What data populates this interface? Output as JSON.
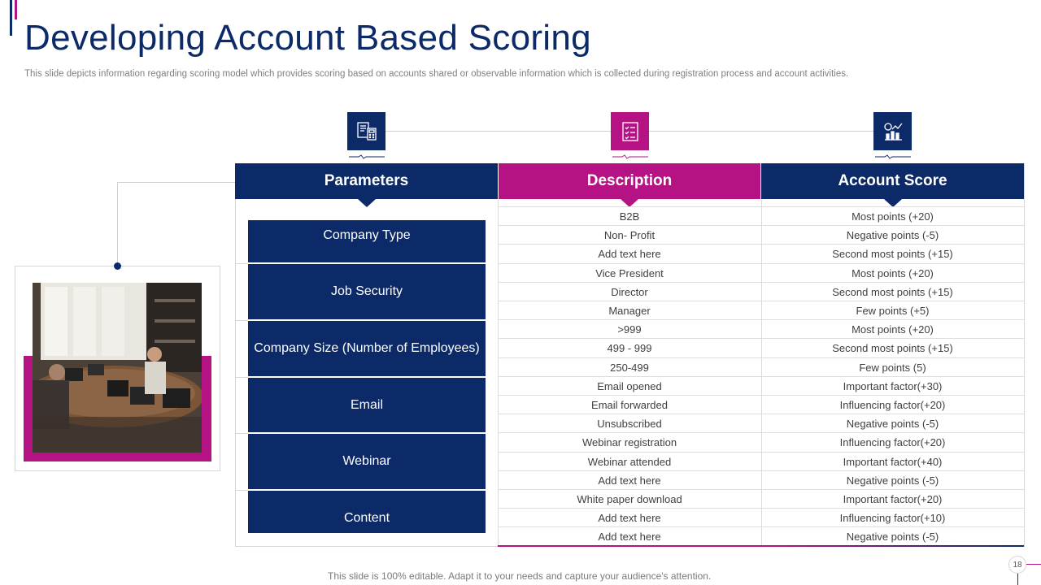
{
  "title": "Developing Account Based Scoring",
  "subtitle": "This slide depicts information regarding scoring model which provides scoring based on accounts shared or observable information which is collected during registration process and account activities.",
  "colors": {
    "navy": "#0c2a68",
    "magenta": "#b51283"
  },
  "icons": [
    "calculator-document-icon",
    "checklist-icon",
    "analytics-icon"
  ],
  "headers": {
    "parameters": "Parameters",
    "description": "Description",
    "account_score": "Account Score"
  },
  "parameters": [
    "Company Type",
    "Job Security",
    "Company Size (Number of Employees)",
    "Email",
    "Webinar",
    "Content"
  ],
  "rows": [
    {
      "description": "B2B",
      "score": "Most points (+20)"
    },
    {
      "description": "Non- Profit",
      "score": "Negative  points (-5)"
    },
    {
      "description": "Add text here",
      "score": "Second most points (+15)"
    },
    {
      "description": "Vice President",
      "score": "Most points (+20)"
    },
    {
      "description": "Director",
      "score": "Second most points (+15)"
    },
    {
      "description": "Manager",
      "score": "Few points (+5)"
    },
    {
      "description": ">999",
      "score": "Most points (+20)"
    },
    {
      "description": "499 - 999",
      "score": "Second most points (+15)"
    },
    {
      "description": "250-499",
      "score": "Few points (5)"
    },
    {
      "description": "Email opened",
      "score": "Important factor(+30)"
    },
    {
      "description": "Email forwarded",
      "score": "Influencing  factor(+20)"
    },
    {
      "description": "Unsubscribed",
      "score": "Negative  points (-5)"
    },
    {
      "description": "Webinar registration",
      "score": "Influencing  factor(+20)"
    },
    {
      "description": "Webinar attended",
      "score": "Important factor(+40)"
    },
    {
      "description": "Add text here",
      "score": "Negative  points (-5)"
    },
    {
      "description": "White paper download",
      "score": "Important factor(+20)"
    },
    {
      "description": "Add text here",
      "score": "Influencing  factor(+10)"
    },
    {
      "description": "Add text here",
      "score": "Negative  points (-5)"
    }
  ],
  "footer": "This slide is 100% editable. Adapt it to your needs and capture your audience's attention.",
  "page_number": "18"
}
